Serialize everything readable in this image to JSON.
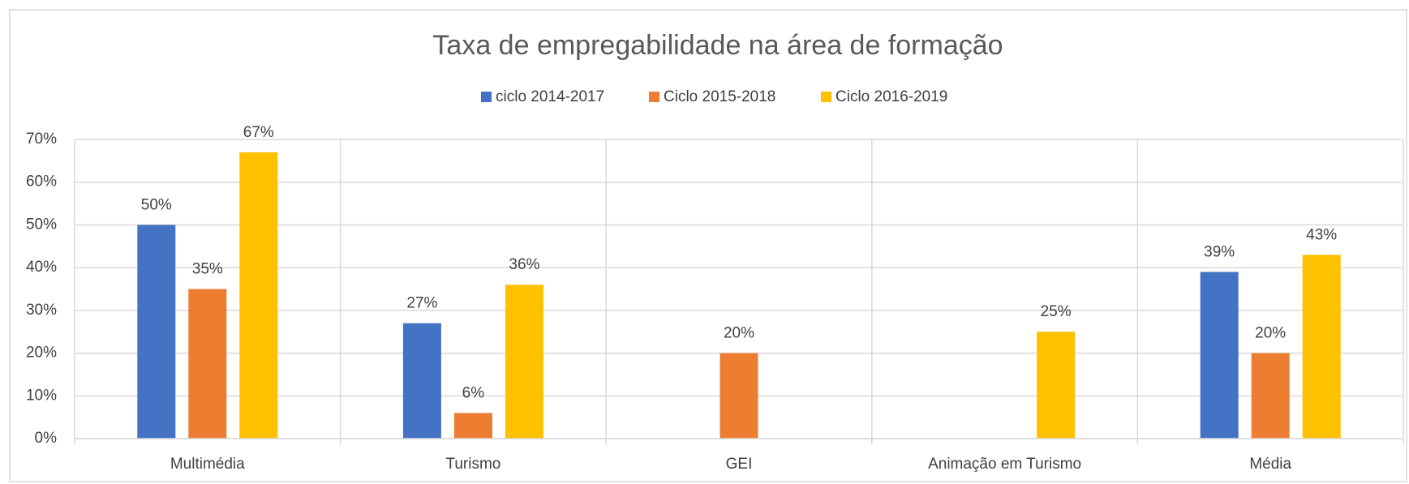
{
  "chart_data": {
    "type": "bar",
    "title": "Taxa de empregabilidade na área de formação",
    "categories": [
      "Multimédia",
      "Turismo",
      "GEI",
      "Animação em Turismo",
      "Média"
    ],
    "series": [
      {
        "name": "ciclo 2014-2017",
        "color": "#4472c4",
        "values": [
          50,
          27,
          null,
          null,
          39
        ],
        "value_labels": [
          "50%",
          "27%",
          null,
          null,
          "39%"
        ]
      },
      {
        "name": "Ciclo 2015-2018",
        "color": "#ed7d31",
        "values": [
          35,
          6,
          20,
          null,
          20
        ],
        "value_labels": [
          "35%",
          "6%",
          "20%",
          null,
          "20%"
        ]
      },
      {
        "name": "Ciclo 2016-2019",
        "color": "#ffc000",
        "values": [
          67,
          36,
          null,
          25,
          43
        ],
        "value_labels": [
          "67%",
          "36%",
          null,
          "25%",
          "43%"
        ]
      }
    ],
    "ylim": [
      0,
      70
    ],
    "yticks": [
      {
        "value": 0,
        "label": "0%"
      },
      {
        "value": 10,
        "label": "10%"
      },
      {
        "value": 20,
        "label": "20%"
      },
      {
        "value": 30,
        "label": "30%"
      },
      {
        "value": 40,
        "label": "40%"
      },
      {
        "value": 50,
        "label": "50%"
      },
      {
        "value": 60,
        "label": "60%"
      },
      {
        "value": 70,
        "label": "70%"
      }
    ],
    "grid": true,
    "legend": "top"
  }
}
